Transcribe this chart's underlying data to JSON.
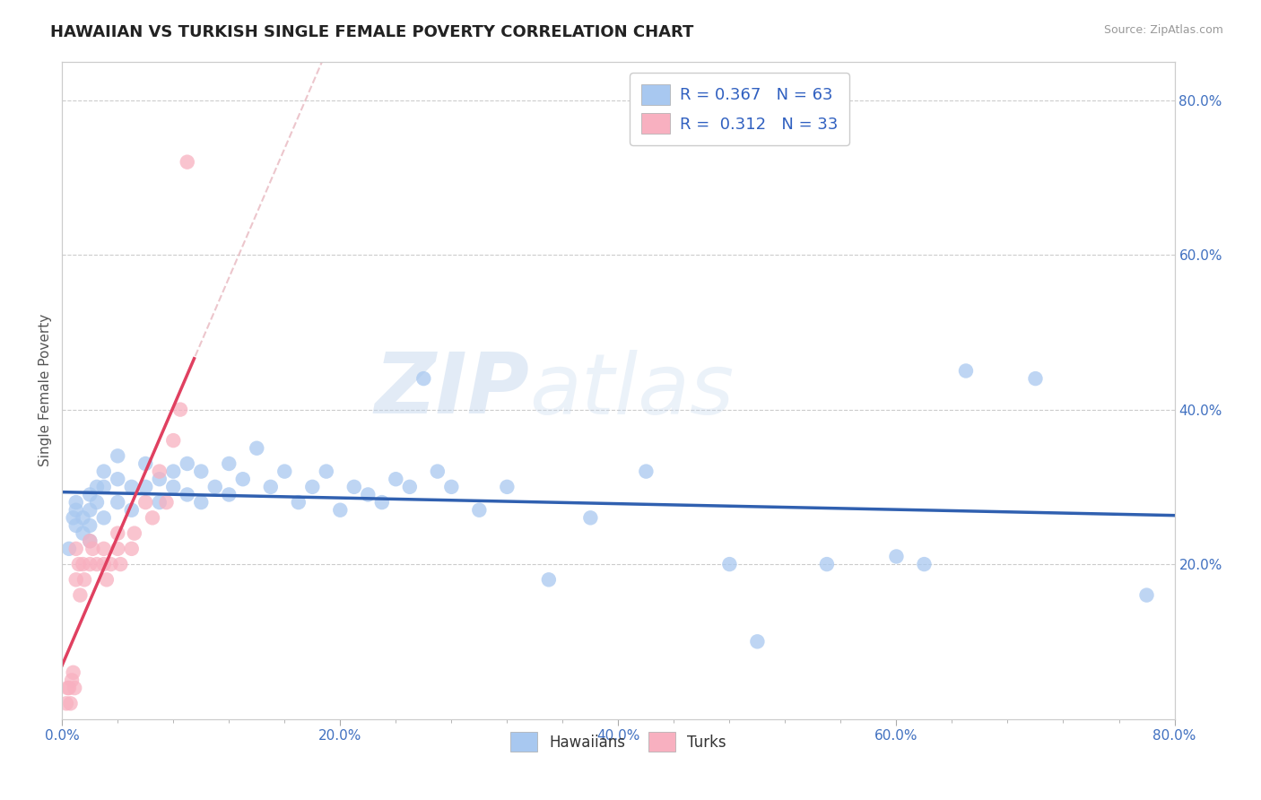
{
  "title": "HAWAIIAN VS TURKISH SINGLE FEMALE POVERTY CORRELATION CHART",
  "source": "Source: ZipAtlas.com",
  "xlabel": "",
  "ylabel": "Single Female Poverty",
  "xlim": [
    0.0,
    0.8
  ],
  "ylim": [
    0.0,
    0.85
  ],
  "xtick_labels": [
    "0.0%",
    "",
    "",
    "",
    "",
    "20.0%",
    "",
    "",
    "",
    "",
    "40.0%",
    "",
    "",
    "",
    "",
    "60.0%",
    "",
    "",
    "",
    "",
    "80.0%"
  ],
  "xtick_vals": [
    0.0,
    0.04,
    0.08,
    0.12,
    0.16,
    0.2,
    0.24,
    0.28,
    0.32,
    0.36,
    0.4,
    0.44,
    0.48,
    0.52,
    0.56,
    0.6,
    0.64,
    0.68,
    0.72,
    0.76,
    0.8
  ],
  "ytick_labels": [
    "20.0%",
    "40.0%",
    "60.0%",
    "80.0%"
  ],
  "ytick_vals": [
    0.2,
    0.4,
    0.6,
    0.8
  ],
  "hawaiian_R": 0.367,
  "hawaiian_N": 63,
  "turkish_R": 0.312,
  "turkish_N": 33,
  "hawaiian_color": "#a8c8f0",
  "hawaiian_line_color": "#3060b0",
  "turkish_color": "#f8b0c0",
  "turkish_line_color": "#e04060",
  "turkish_dashed_color": "#e8b0b8",
  "background_color": "#ffffff",
  "grid_color": "#cccccc",
  "watermark_color": "#d0e4f8",
  "title_fontsize": 13,
  "axis_label_fontsize": 11,
  "tick_fontsize": 11,
  "legend_fontsize": 13,
  "hawaiians_x": [
    0.005,
    0.008,
    0.01,
    0.01,
    0.01,
    0.015,
    0.015,
    0.02,
    0.02,
    0.02,
    0.02,
    0.025,
    0.025,
    0.03,
    0.03,
    0.03,
    0.04,
    0.04,
    0.04,
    0.05,
    0.05,
    0.06,
    0.06,
    0.07,
    0.07,
    0.08,
    0.08,
    0.09,
    0.09,
    0.1,
    0.1,
    0.11,
    0.12,
    0.12,
    0.13,
    0.14,
    0.15,
    0.16,
    0.17,
    0.18,
    0.19,
    0.2,
    0.21,
    0.22,
    0.23,
    0.24,
    0.25,
    0.26,
    0.27,
    0.28,
    0.3,
    0.32,
    0.35,
    0.38,
    0.42,
    0.48,
    0.5,
    0.55,
    0.6,
    0.62,
    0.65,
    0.7,
    0.78
  ],
  "hawaiians_y": [
    0.22,
    0.26,
    0.28,
    0.25,
    0.27,
    0.24,
    0.26,
    0.23,
    0.25,
    0.27,
    0.29,
    0.28,
    0.3,
    0.26,
    0.3,
    0.32,
    0.28,
    0.31,
    0.34,
    0.27,
    0.3,
    0.3,
    0.33,
    0.28,
    0.31,
    0.3,
    0.32,
    0.29,
    0.33,
    0.28,
    0.32,
    0.3,
    0.29,
    0.33,
    0.31,
    0.35,
    0.3,
    0.32,
    0.28,
    0.3,
    0.32,
    0.27,
    0.3,
    0.29,
    0.28,
    0.31,
    0.3,
    0.44,
    0.32,
    0.3,
    0.27,
    0.3,
    0.18,
    0.26,
    0.32,
    0.2,
    0.1,
    0.2,
    0.21,
    0.2,
    0.45,
    0.44,
    0.16
  ],
  "turks_x": [
    0.003,
    0.004,
    0.005,
    0.006,
    0.007,
    0.008,
    0.009,
    0.01,
    0.01,
    0.012,
    0.013,
    0.015,
    0.016,
    0.02,
    0.02,
    0.022,
    0.025,
    0.03,
    0.03,
    0.032,
    0.035,
    0.04,
    0.04,
    0.042,
    0.05,
    0.052,
    0.06,
    0.065,
    0.07,
    0.075,
    0.08,
    0.085,
    0.09
  ],
  "turks_y": [
    0.02,
    0.04,
    0.04,
    0.02,
    0.05,
    0.06,
    0.04,
    0.18,
    0.22,
    0.2,
    0.16,
    0.2,
    0.18,
    0.2,
    0.23,
    0.22,
    0.2,
    0.2,
    0.22,
    0.18,
    0.2,
    0.22,
    0.24,
    0.2,
    0.22,
    0.24,
    0.28,
    0.26,
    0.32,
    0.28,
    0.36,
    0.4,
    0.72
  ]
}
